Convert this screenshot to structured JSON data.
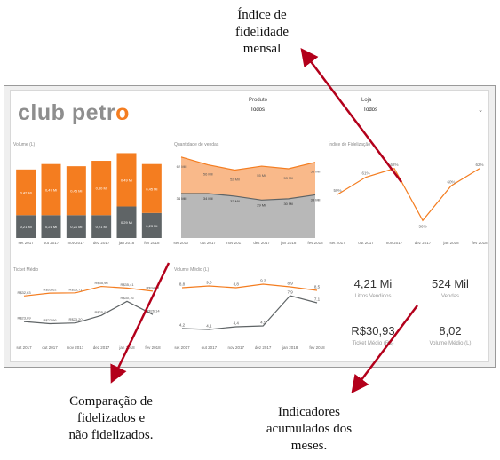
{
  "annotations": {
    "top": [
      "Índice de",
      "fidelidade",
      "mensal"
    ],
    "left": [
      "Comparação de",
      "fidelizados e",
      "não fidelizados."
    ],
    "right": [
      "Indicadores",
      "acumulados dos",
      "meses."
    ]
  },
  "dashboard": {
    "logo_main": "club petr",
    "logo_o": "o",
    "filters": [
      {
        "label": "Produto",
        "value": "Todos"
      },
      {
        "label": "Loja",
        "value": "Todos"
      }
    ]
  },
  "months": [
    "set 2017",
    "out 2017",
    "nov 2017",
    "dez 2017",
    "jan 2018",
    "fev 2018"
  ],
  "colors": {
    "orange": "#f47d20",
    "gray": "#5f6466",
    "light_orange": "#f9b98a",
    "light_gray": "#b8b8b8"
  },
  "kpis": [
    {
      "value": "4,21 Mi",
      "label": "Litros Vendidos"
    },
    {
      "value": "524 Mil",
      "label": "Vendas"
    },
    {
      "value": "R$30,93",
      "label": "Ticket Médio (R$)"
    },
    {
      "value": "8,02",
      "label": "Volume Médio (L)"
    }
  ],
  "chart_data": [
    {
      "type": "bar",
      "title": "Volume (L)",
      "categories": [
        "set 2017",
        "out 2017",
        "nov 2017",
        "dez 2017",
        "jan 2018",
        "fev 2018"
      ],
      "series": [
        {
          "values": [
            0.21,
            0.21,
            0.21,
            0.21,
            0.29,
            0.23
          ],
          "labels": [
            "0,21 Mi",
            "0,21 Mi",
            "0,21 Mi",
            "0,21 Mi",
            "0,29 Mi",
            "0,23 Mi"
          ]
        },
        {
          "values": [
            0.42,
            0.47,
            0.45,
            0.5,
            0.49,
            0.45
          ],
          "labels": [
            "0,42 Mi",
            "0,47 Mi",
            "0,45 Mi",
            "0,50 Mi",
            "0,49 Mi",
            "0,45 Mi"
          ]
        }
      ]
    },
    {
      "type": "area",
      "title": "Quantidade de vendas",
      "categories": [
        "set 2017",
        "out 2017",
        "nov 2017",
        "dez 2017",
        "jan 2018",
        "fev 2018"
      ],
      "series": [
        {
          "values": [
            34,
            34,
            32,
            29,
            30,
            33
          ],
          "labels": [
            "34 Mil",
            "34 Mil",
            "32 Mil",
            "29 Mil",
            "30 Mil",
            "33 Mil"
          ]
        },
        {
          "values": [
            62,
            56,
            52,
            55,
            53,
            58
          ],
          "labels": [
            "62 Mil",
            "56 Mil",
            "52 Mil",
            "55 Mil",
            "53 Mil",
            "58 Mil"
          ]
        }
      ],
      "ylim": [
        0,
        70
      ]
    },
    {
      "type": "line",
      "title": "Índice de Fidelização",
      "categories": [
        "set 2017",
        "out 2017",
        "nov 2017",
        "dez 2017",
        "jan 2018",
        "fev 2018"
      ],
      "values": [
        59,
        61,
        62,
        56,
        60,
        62
      ],
      "labels": [
        "59%",
        "61%",
        "62%",
        "56%",
        "60%",
        "62%"
      ],
      "ylim": [
        55,
        63
      ]
    },
    {
      "type": "line",
      "title": "Ticket Médio",
      "categories": [
        "set 2017",
        "out 2017",
        "nov 2017",
        "dez 2017",
        "jan 2018",
        "fev 2018"
      ],
      "series": [
        {
          "values": [
            32.63,
            33.62,
            33.71,
            35.96,
            35.41,
            34.31
          ],
          "labels": [
            "R$32,63",
            "R$33,62",
            "R$33,71",
            "R$35,96",
            "R$35,41",
            "R$34,31"
          ]
        },
        {
          "values": [
            23.69,
            22.96,
            23.2,
            25.8,
            30.76,
            26.14
          ],
          "labels": [
            "R$23,69",
            "R$22,96",
            "R$23,20",
            "R$25,80",
            "R$30,76",
            "R$26,14"
          ]
        }
      ],
      "ylim": [
        20,
        38
      ]
    },
    {
      "type": "line",
      "title": "Volume Médio (L)",
      "categories": [
        "set 2017",
        "out 2017",
        "nov 2017",
        "dez 2017",
        "jan 2018",
        "fev 2018"
      ],
      "series": [
        {
          "values": [
            8.8,
            9.0,
            8.8,
            9.2,
            8.9,
            8.5
          ],
          "labels": [
            "8,8",
            "9,0",
            "8,8",
            "9,2",
            "8,9",
            "8,5"
          ]
        },
        {
          "values": [
            4.2,
            4.1,
            4.4,
            4.5,
            7.9,
            7.1
          ],
          "labels": [
            "4,2",
            "4,1",
            "4,4",
            "4,5",
            "7,9",
            "7,1"
          ]
        }
      ],
      "ylim": [
        3,
        10
      ]
    }
  ]
}
